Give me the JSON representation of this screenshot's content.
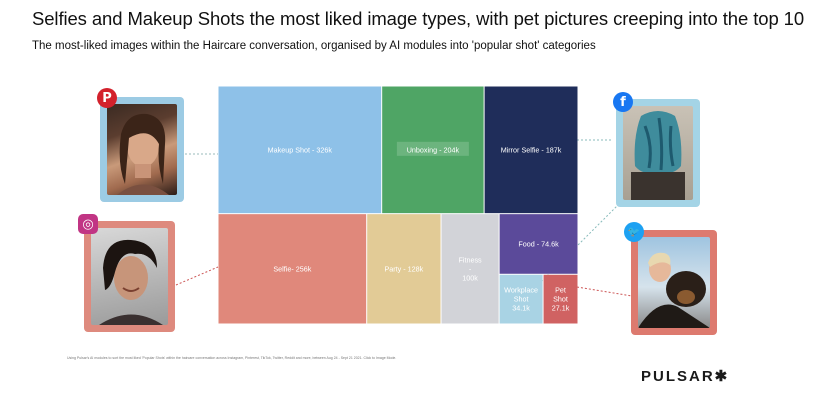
{
  "header": {
    "title": "Selfies and Makeup Shots the most liked image types, with pet pictures creeping into the top 10",
    "subtitle": "The most-liked images within the Haircare conversation, organised by AI modules into 'popular shot' categories"
  },
  "chart_data": {
    "type": "treemap",
    "title": "Selfies and Makeup Shots the most liked image types, with pet pictures creeping into the top 10",
    "units": "likes",
    "items": [
      {
        "label": "Makeup Shot - 326k",
        "name": "Makeup Shot",
        "value": 326000,
        "color": "#8ec1e8",
        "label_bg": ""
      },
      {
        "label": "Unboxing - 204k",
        "name": "Unboxing",
        "value": 204000,
        "color": "#4fa565",
        "label_bg": "#6cb47e"
      },
      {
        "label": "Mirror Selfie - 187k",
        "name": "Mirror Selfie",
        "value": 187000,
        "color": "#1f2d5a",
        "label_bg": ""
      },
      {
        "label": "Selfie- 256k",
        "name": "Selfie",
        "value": 256000,
        "color": "#e0887b",
        "label_bg": ""
      },
      {
        "label": "Party - 128k",
        "name": "Party",
        "value": 128000,
        "color": "#e2cb96",
        "label_bg": ""
      },
      {
        "label": "Fitness - 100k",
        "name": "Fitness",
        "value": 100000,
        "color": "#d2d3d8",
        "label_bg": ""
      },
      {
        "label": "Food - 74.6k",
        "name": "Food",
        "value": 74600,
        "color": "#5b4a9a",
        "label_bg": ""
      },
      {
        "label": "Workplace Shot 34.1k",
        "name": "Workplace Shot",
        "value": 34100,
        "color": "#a9d3e4",
        "label_bg": ""
      },
      {
        "label": "Pet Shot 27.1k",
        "name": "Pet Shot",
        "value": 27100,
        "color": "#d06262",
        "label_bg": ""
      }
    ]
  },
  "photos": [
    {
      "platform": "Pinterest",
      "icon": "pinterest-icon",
      "glyph": "P",
      "badge_color": "#d3212c",
      "frame_color": "#9ccbe4"
    },
    {
      "platform": "Instagram",
      "icon": "instagram-icon",
      "glyph": "◎",
      "badge_color": "#c13584",
      "frame_color": "#de8a7e"
    },
    {
      "platform": "Facebook",
      "icon": "facebook-icon",
      "glyph": "f",
      "badge_color": "#1877f2",
      "frame_color": "#a4d4e6"
    },
    {
      "platform": "Twitter",
      "icon": "twitter-icon",
      "glyph": "🐦",
      "badge_color": "#1da1f2",
      "frame_color": "#dd7a6f"
    }
  ],
  "footer": {
    "note": "Using Pulsar's AI modules to sort the most liked 'Popular Shots' within the haircare conversation across Instagram, Pinterest, TikTok, Twitter, Reddit and more, between Aug 24 - Sept 21 2021. Click to Image Mode.",
    "brand": "PULSAR✱"
  }
}
